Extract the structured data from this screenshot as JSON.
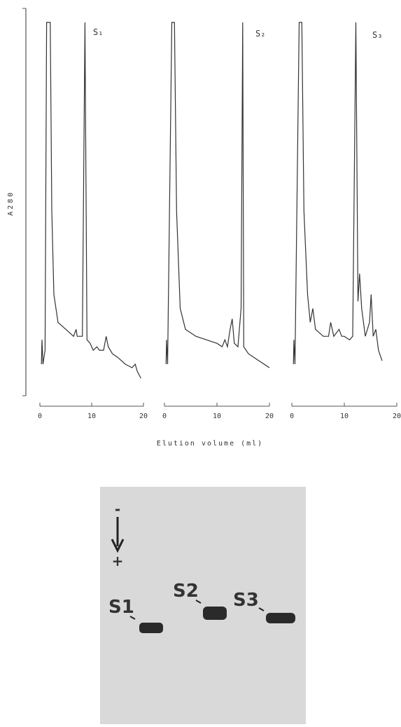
{
  "figure": {
    "y_label": "A280",
    "x_label": "Elution volume (ml)"
  },
  "chart_data": [
    {
      "type": "line",
      "label": "S₁",
      "xlim": [
        0,
        20
      ],
      "xticks": [
        0,
        10,
        20
      ],
      "ylim": [
        -5,
        100
      ],
      "color": "#333333",
      "x": [
        0.3,
        0.4,
        0.6,
        1.0,
        1.3,
        2.0,
        2.3,
        2.7,
        3.5,
        5,
        6.5,
        7,
        7.2,
        8.2,
        8.7,
        9.1,
        9.7,
        10.3,
        11,
        11.5,
        12.3,
        12.8,
        13.2,
        14,
        15,
        16.5,
        17.8,
        18.4,
        18.8,
        19.5
      ],
      "values": [
        2,
        9,
        2,
        6,
        100,
        100,
        46,
        22,
        14,
        12,
        10,
        12,
        10,
        10,
        100,
        9,
        8,
        6,
        7,
        6,
        6,
        10,
        7,
        5,
        4,
        2,
        1,
        2,
        0,
        -2
      ]
    },
    {
      "type": "line",
      "label": "S₂",
      "xlim": [
        0,
        20
      ],
      "xticks": [
        0,
        10,
        20
      ],
      "ylim": [
        -5,
        100
      ],
      "color": "#333333",
      "x": [
        0.3,
        0.4,
        0.6,
        1.4,
        1.9,
        2.3,
        3,
        4,
        6,
        8,
        10,
        11,
        11.5,
        12,
        12.5,
        12.9,
        13.3,
        14,
        14.6,
        14.9,
        15.1,
        16,
        18,
        20
      ],
      "values": [
        2,
        9,
        2,
        100,
        100,
        46,
        18,
        12,
        10,
        9,
        8,
        7,
        9,
        7,
        12,
        15,
        8,
        7,
        18,
        100,
        7,
        5,
        3,
        1
      ]
    },
    {
      "type": "line",
      "label": "S₃",
      "xlim": [
        0,
        20
      ],
      "xticks": [
        0,
        10,
        20
      ],
      "ylim": [
        -5,
        100
      ],
      "color": "#333333",
      "x": [
        0.3,
        0.4,
        0.6,
        1.4,
        1.9,
        2.3,
        3,
        3.5,
        4,
        4.5,
        6,
        7,
        7.4,
        8,
        9,
        9.5,
        10,
        11,
        11.6,
        12.2,
        12.6,
        12.9,
        13.3,
        14,
        14.8,
        15.1,
        15.5,
        16,
        16.5,
        17.2
      ],
      "values": [
        2,
        9,
        2,
        100,
        100,
        46,
        22,
        14,
        18,
        12,
        10,
        10,
        14,
        10,
        12,
        10,
        10,
        9,
        10,
        100,
        20,
        28,
        18,
        10,
        14,
        22,
        10,
        12,
        6,
        3
      ]
    }
  ],
  "gel": {
    "polarity": [
      "-",
      "+"
    ],
    "lanes": [
      "S1",
      "S2",
      "S3"
    ]
  }
}
